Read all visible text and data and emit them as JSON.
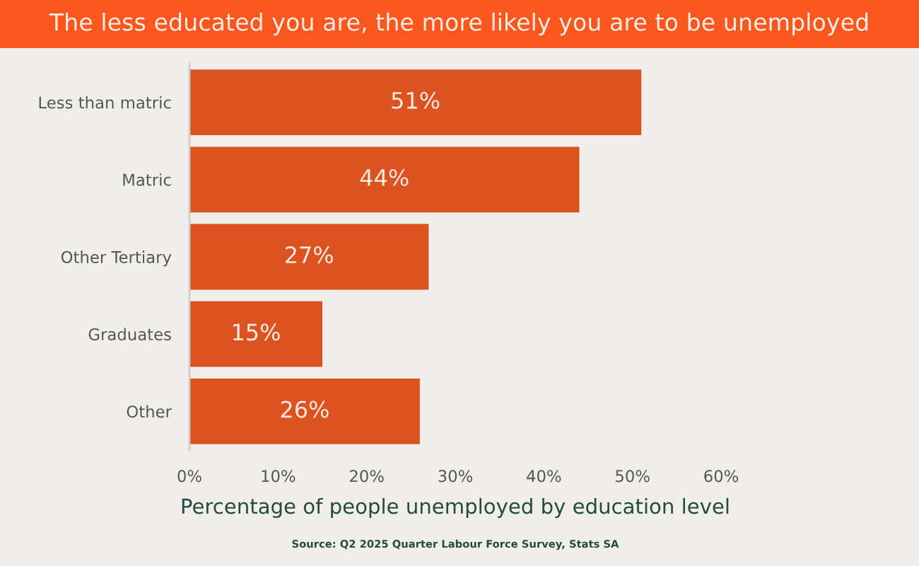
{
  "chart_data": {
    "type": "bar",
    "orientation": "horizontal",
    "title": "The less educated you are, the more likely you are to be unemployed",
    "xlabel": "Percentage of people unemployed by education level",
    "annotations": [
      "Source: Q2 2025 Quarter Labour Force Survey, Stats SA"
    ],
    "categories": [
      "Less than matric",
      "Matric",
      "Other Tertiary",
      "Graduates",
      "Other"
    ],
    "values": [
      51,
      44,
      27,
      15,
      26
    ],
    "value_labels": [
      "51%",
      "44%",
      "27%",
      "15%",
      "26%"
    ],
    "color": "#dd5221",
    "xlim": [
      0,
      60
    ],
    "xticks": [
      {
        "value": 0,
        "label": "0%"
      },
      {
        "value": 10,
        "label": "10%"
      },
      {
        "value": 20,
        "label": "20%"
      },
      {
        "value": 30,
        "label": "30%"
      },
      {
        "value": 40,
        "label": "40%"
      },
      {
        "value": 50,
        "label": "50%"
      },
      {
        "value": 60,
        "label": "60%"
      }
    ],
    "grid": false,
    "legend": false
  }
}
